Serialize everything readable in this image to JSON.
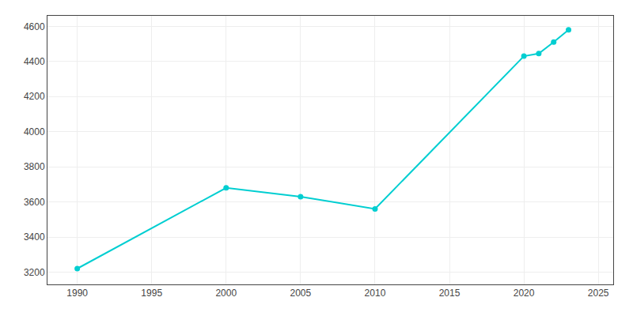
{
  "chart_data": {
    "type": "line",
    "x": [
      1990,
      2000,
      2005,
      2010,
      2020,
      2021,
      2022,
      2023
    ],
    "values": [
      3220,
      3680,
      3630,
      3560,
      4430,
      4445,
      4510,
      4580
    ],
    "color": "#00CED1",
    "marker": "circle",
    "xlim": [
      1988,
      2026
    ],
    "ylim": [
      3130,
      4660
    ],
    "xticks": [
      1990,
      1995,
      2000,
      2005,
      2010,
      2015,
      2020,
      2025
    ],
    "yticks": [
      3200,
      3400,
      3600,
      3800,
      4000,
      4200,
      4400,
      4600
    ],
    "grid": true
  }
}
